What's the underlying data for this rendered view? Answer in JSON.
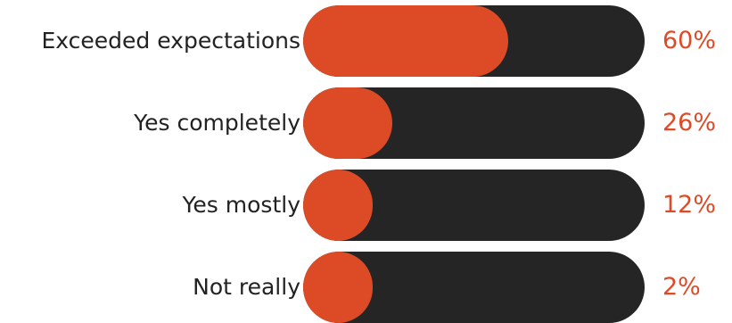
{
  "chart_data": {
    "type": "bar",
    "orientation": "horizontal",
    "categories": [
      "Exceeded expectations",
      "Yes completely",
      "Yes mostly",
      "Not really"
    ],
    "values": [
      60,
      26,
      12,
      2
    ],
    "value_labels": [
      "60%",
      "26%",
      "12%",
      "2%"
    ],
    "unit": "%",
    "xlim": [
      0,
      100
    ],
    "grid": false,
    "legend": "none"
  },
  "colors": {
    "fill": "#dd4b26",
    "track": "#252525",
    "label_text": "#222222",
    "value_text": "#dd4b26",
    "background": "#ffffff"
  }
}
